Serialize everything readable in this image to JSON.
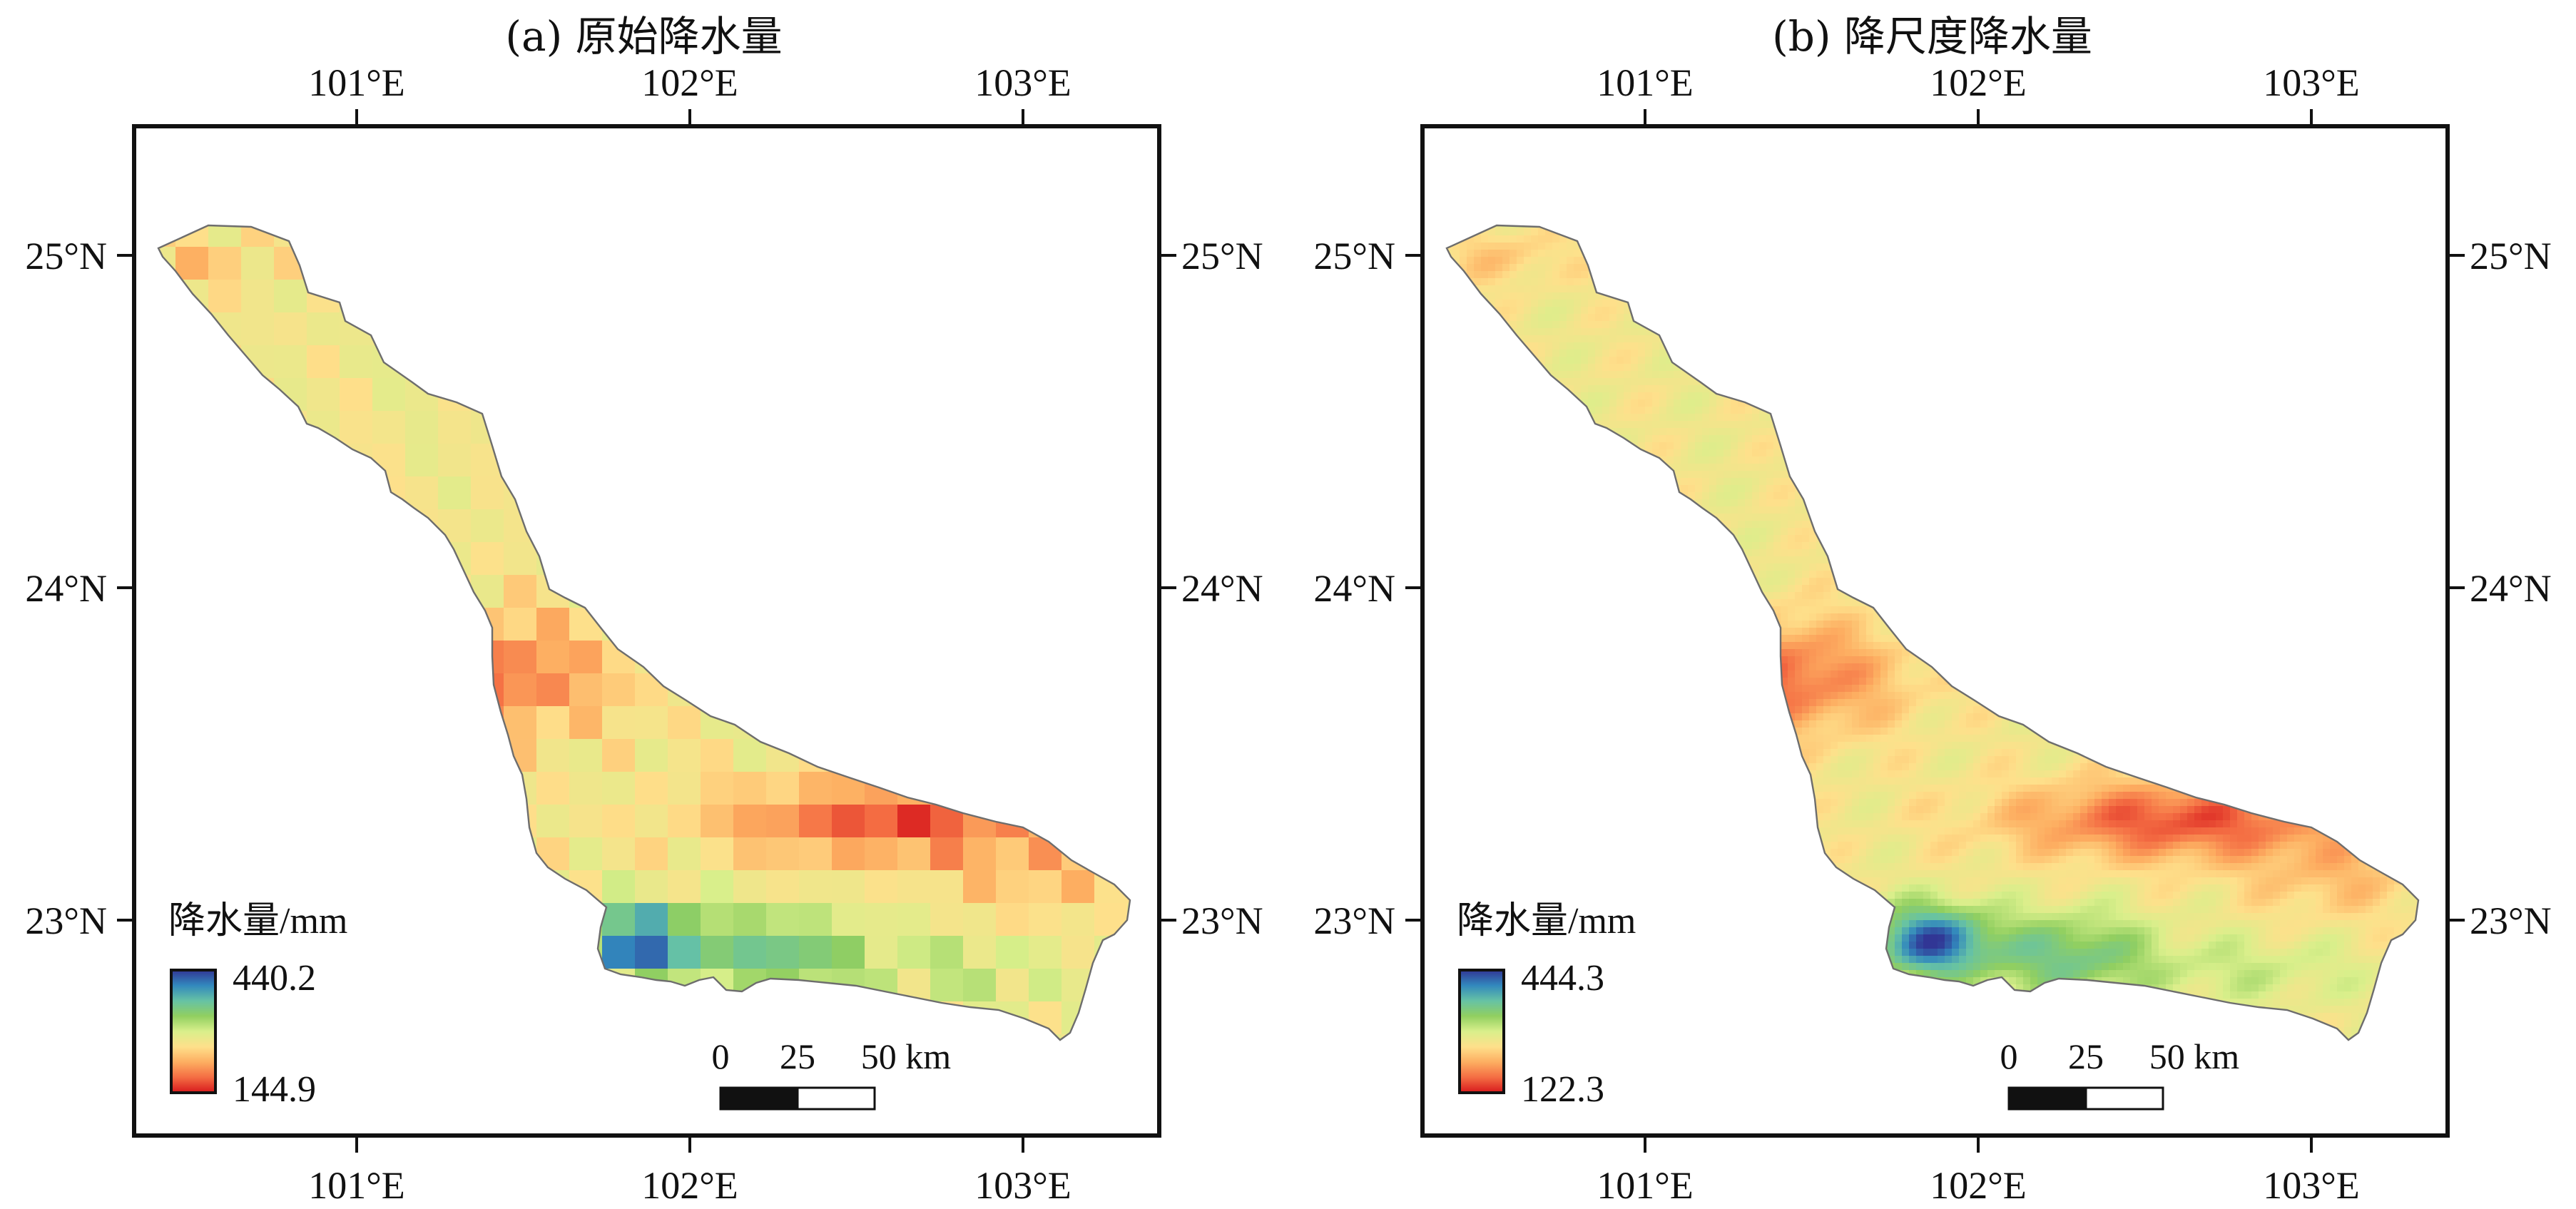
{
  "panels": [
    {
      "id": "a",
      "title": "(a) 原始降水量",
      "legend": {
        "title": "降水量/mm",
        "max_label": "440.2",
        "min_label": "144.9"
      },
      "scalebar": {
        "labels": [
          "0",
          "25",
          "50 km"
        ]
      },
      "resolution": "coarse grid"
    },
    {
      "id": "b",
      "title": "(b) 降尺度降水量",
      "legend": {
        "title": "降水量/mm",
        "max_label": "444.3",
        "min_label": "122.3"
      },
      "scalebar": {
        "labels": [
          "0",
          "25",
          "50 km"
        ]
      },
      "resolution": "fine downscaled"
    }
  ],
  "axes": {
    "lon_ticks": [
      {
        "label": "101°E",
        "value": 101
      },
      {
        "label": "102°E",
        "value": 102
      },
      {
        "label": "103°E",
        "value": 103
      }
    ],
    "lat_ticks": [
      {
        "label": "25°N",
        "value": 25
      },
      {
        "label": "24°N",
        "value": 24
      },
      {
        "label": "23°N",
        "value": 23
      }
    ]
  },
  "colormap": [
    "#d7191c",
    "#f46d43",
    "#fdae61",
    "#fee08b",
    "#d9ef8b",
    "#91cf60",
    "#66c2a5",
    "#3288bd",
    "#313695"
  ],
  "map_style": {
    "frame_color": "#111111",
    "outline_color": "#6d6d6d"
  }
}
